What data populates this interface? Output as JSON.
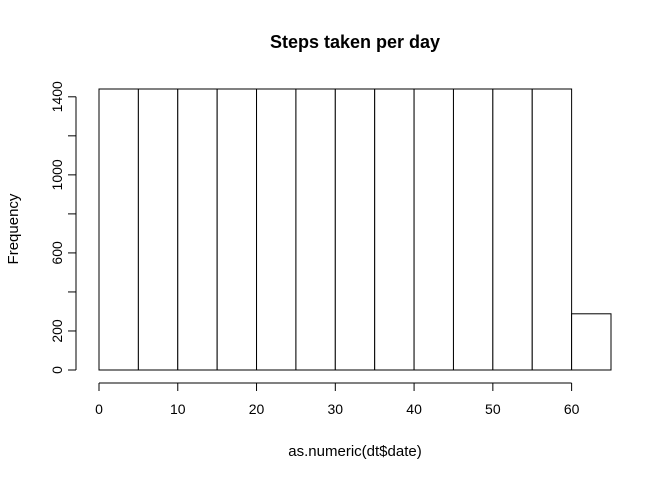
{
  "chart_data": {
    "type": "bar",
    "title": "Steps taken per day",
    "xlabel": "as.numeric(dt$date)",
    "ylabel": "Frequency",
    "bins": [
      {
        "from": 0,
        "to": 5,
        "count": 1440
      },
      {
        "from": 5,
        "to": 10,
        "count": 1440
      },
      {
        "from": 10,
        "to": 15,
        "count": 1440
      },
      {
        "from": 15,
        "to": 20,
        "count": 1440
      },
      {
        "from": 20,
        "to": 25,
        "count": 1440
      },
      {
        "from": 25,
        "to": 30,
        "count": 1440
      },
      {
        "from": 30,
        "to": 35,
        "count": 1440
      },
      {
        "from": 35,
        "to": 40,
        "count": 1440
      },
      {
        "from": 40,
        "to": 45,
        "count": 1440
      },
      {
        "from": 45,
        "to": 50,
        "count": 1440
      },
      {
        "from": 50,
        "to": 55,
        "count": 1440
      },
      {
        "from": 55,
        "to": 60,
        "count": 1440
      },
      {
        "from": 60,
        "to": 65,
        "count": 288
      }
    ],
    "xlim": [
      0,
      65
    ],
    "ylim": [
      0,
      1440
    ],
    "x_ticks": [
      0,
      10,
      20,
      30,
      40,
      50,
      60
    ],
    "y_ticks": [
      0,
      200,
      400,
      600,
      800,
      1000,
      1200,
      1400
    ],
    "y_tick_labels": [
      "0",
      "200",
      "",
      "600",
      "",
      "1000",
      "",
      "1400"
    ],
    "grid": false,
    "colors": {
      "bar_fill": "#ffffff",
      "bar_stroke": "#000000"
    }
  }
}
